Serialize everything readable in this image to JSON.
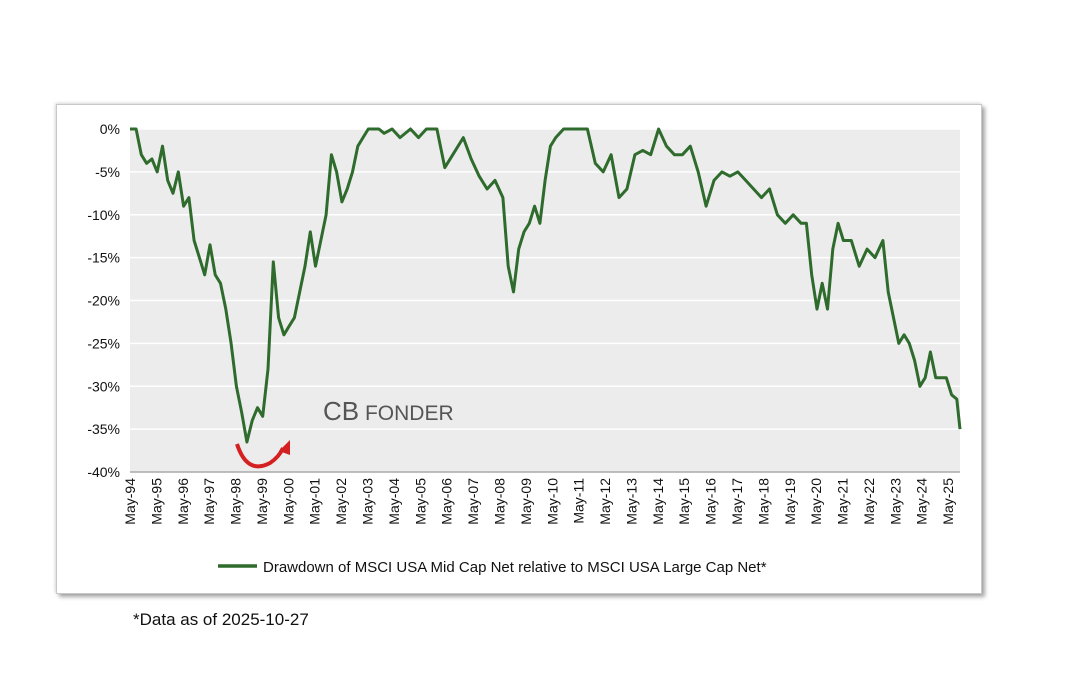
{
  "chart_data": {
    "type": "line",
    "y_unit": "percent",
    "ylim": [
      -40,
      0
    ],
    "y_ticks": [
      0,
      -5,
      -10,
      -15,
      -20,
      -25,
      -30,
      -35,
      -40
    ],
    "y_tick_labels": [
      "0%",
      "-5%",
      "-10%",
      "-15%",
      "-20%",
      "-25%",
      "-30%",
      "-35%",
      "-40%"
    ],
    "x_tick_labels": [
      "May-94",
      "May-95",
      "May-96",
      "May-97",
      "May-98",
      "May-99",
      "May-00",
      "May-01",
      "May-02",
      "May-03",
      "May-04",
      "May-05",
      "May-06",
      "May-07",
      "May-08",
      "May-09",
      "May-10",
      "May-11",
      "May-12",
      "May-13",
      "May-14",
      "May-15",
      "May-16",
      "May-17",
      "May-18",
      "May-19",
      "May-20",
      "May-21",
      "May-22",
      "May-23",
      "May-24",
      "May-25"
    ],
    "xlim": [
      1994.37,
      2025.82
    ],
    "grid": "horizontal",
    "legend_position": "bottom",
    "line_color": "#2e6b2c",
    "series": [
      {
        "name": "Drawdown of MSCI USA Mid Cap Net relative to MSCI USA Large Cap Net*",
        "x": [
          1994.37,
          1994.6,
          1994.8,
          1995.0,
          1995.2,
          1995.4,
          1995.6,
          1995.8,
          1996.0,
          1996.2,
          1996.4,
          1996.6,
          1996.8,
          1997.0,
          1997.2,
          1997.4,
          1997.6,
          1997.8,
          1998.0,
          1998.2,
          1998.4,
          1998.6,
          1998.8,
          1999.0,
          1999.2,
          1999.4,
          1999.6,
          1999.8,
          2000.0,
          2000.2,
          2000.4,
          2000.6,
          2000.8,
          2001.0,
          2001.2,
          2001.4,
          2001.6,
          2001.8,
          2002.0,
          2002.2,
          2002.4,
          2002.6,
          2002.8,
          2003.0,
          2003.2,
          2003.4,
          2003.6,
          2003.8,
          2004.0,
          2004.3,
          2004.6,
          2005.0,
          2005.3,
          2005.6,
          2006.0,
          2006.3,
          2006.6,
          2007.0,
          2007.3,
          2007.6,
          2007.9,
          2008.2,
          2008.5,
          2008.7,
          2008.9,
          2009.1,
          2009.3,
          2009.5,
          2009.7,
          2009.9,
          2010.1,
          2010.3,
          2010.5,
          2010.8,
          2011.1,
          2011.4,
          2011.7,
          2012.0,
          2012.3,
          2012.6,
          2012.9,
          2013.2,
          2013.5,
          2013.8,
          2014.1,
          2014.4,
          2014.7,
          2015.0,
          2015.3,
          2015.6,
          2015.9,
          2016.2,
          2016.5,
          2016.8,
          2017.1,
          2017.4,
          2017.7,
          2018.0,
          2018.3,
          2018.6,
          2018.9,
          2019.2,
          2019.5,
          2019.8,
          2020.0,
          2020.2,
          2020.4,
          2020.6,
          2020.8,
          2021.0,
          2021.2,
          2021.4,
          2021.7,
          2022.0,
          2022.3,
          2022.6,
          2022.9,
          2023.1,
          2023.3,
          2023.5,
          2023.7,
          2023.9,
          2024.1,
          2024.3,
          2024.5,
          2024.7,
          2024.9,
          2025.1,
          2025.3,
          2025.5,
          2025.7,
          2025.82
        ],
        "y": [
          0,
          0,
          -3,
          -4,
          -3.5,
          -5,
          -2,
          -6,
          -7.5,
          -5,
          -9,
          -8,
          -13,
          -15,
          -17,
          -13.5,
          -17,
          -18,
          -21,
          -25,
          -30,
          -33,
          -36.5,
          -34,
          -32.5,
          -33.5,
          -28,
          -15.5,
          -22,
          -24,
          -23,
          -22,
          -19,
          -16,
          -12,
          -16,
          -13,
          -10,
          -3,
          -5,
          -8.5,
          -7,
          -5,
          -2,
          -1,
          0,
          0,
          0,
          -0.5,
          0,
          -1,
          0,
          -1,
          0,
          0,
          -4.5,
          -3,
          -1,
          -3.5,
          -5.5,
          -7,
          -6,
          -8,
          -16,
          -19,
          -14,
          -12,
          -11,
          -9,
          -11,
          -6,
          -2,
          -1,
          0,
          0,
          0,
          0,
          -4,
          -5,
          -3,
          -8,
          -7,
          -3,
          -2.5,
          -3,
          0,
          -2,
          -3,
          -3,
          -2,
          -5,
          -9,
          -6,
          -5,
          -5.5,
          -5,
          -6,
          -7,
          -8,
          -7,
          -10,
          -11,
          -10,
          -11,
          -11,
          -17,
          -21,
          -18,
          -21,
          -14,
          -11,
          -13,
          -13,
          -16,
          -14,
          -15,
          -13,
          -19,
          -22,
          -25,
          -24,
          -25,
          -27,
          -30,
          -29,
          -26,
          -29,
          -29,
          -29,
          -31,
          -31.5,
          -35
        ]
      }
    ],
    "annotation_text": "CB FONDER",
    "footnote": "*Data as of 2025-10-27"
  }
}
